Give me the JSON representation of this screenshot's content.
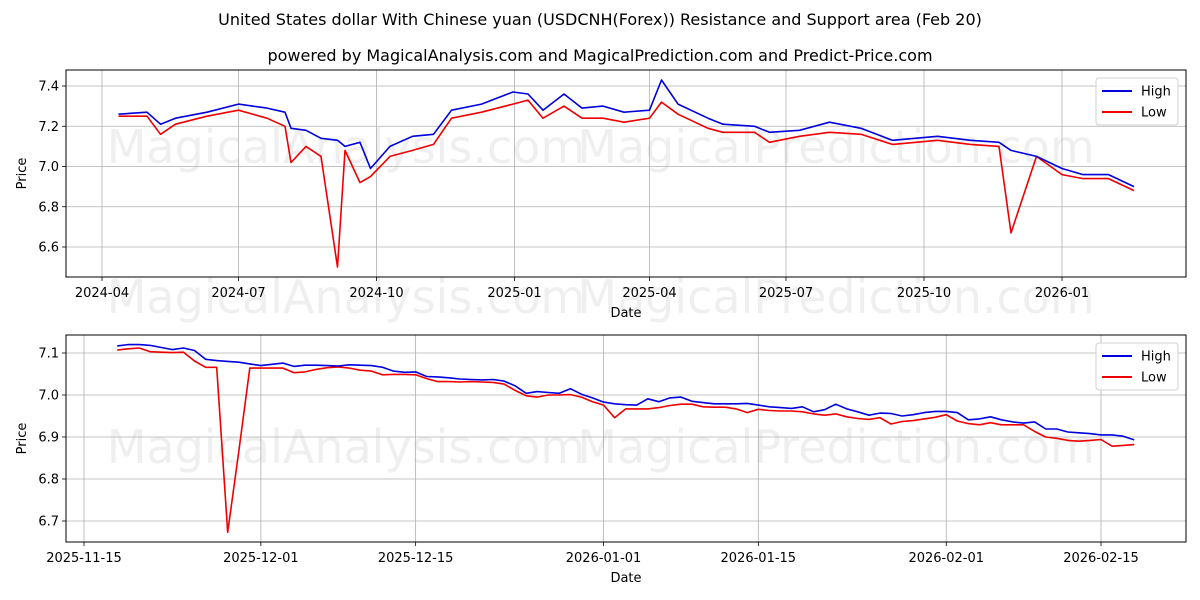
{
  "header": {
    "title": "United States dollar With Chinese yuan (USDCNH(Forex)) Resistance and Support area (Feb 20)",
    "subtitle": "powered by MagicalAnalysis.com and MagicalPrediction.com and Predict-Price.com"
  },
  "watermarks": [
    "MagicalAnalysis.com",
    "MagicalPrediction.com"
  ],
  "colors": {
    "high": "#0000dd",
    "low": "#ee0000",
    "grid": "#b0b0b0"
  },
  "chart_data": [
    {
      "type": "line",
      "title": "",
      "xlabel": "Date",
      "ylabel": "Price",
      "ylim": [
        6.45,
        7.48
      ],
      "grid": true,
      "legend_position": "upper right",
      "yticks": [
        "6.6",
        "6.8",
        "7.0",
        "7.2",
        "7.4"
      ],
      "xticks": [
        "2024-04",
        "2024-07",
        "2024-10",
        "2025-01",
        "2025-04",
        "2025-07",
        "2025-10",
        "2026-01"
      ],
      "x": [
        "2024-04-12",
        "2024-05-01",
        "2024-05-10",
        "2024-05-20",
        "2024-06-10",
        "2024-07-01",
        "2024-07-20",
        "2024-08-01",
        "2024-08-05",
        "2024-08-15",
        "2024-08-25",
        "2024-09-05",
        "2024-09-10",
        "2024-09-20",
        "2024-09-27",
        "2024-10-10",
        "2024-10-25",
        "2024-11-08",
        "2024-11-20",
        "2024-12-10",
        "2024-12-31",
        "2025-01-10",
        "2025-01-20",
        "2025-02-03",
        "2025-02-15",
        "2025-03-01",
        "2025-03-15",
        "2025-04-01",
        "2025-04-09",
        "2025-04-20",
        "2025-05-10",
        "2025-05-20",
        "2025-06-10",
        "2025-06-20",
        "2025-07-10",
        "2025-07-30",
        "2025-08-20",
        "2025-09-10",
        "2025-10-10",
        "2025-11-01",
        "2025-11-20",
        "2025-11-28",
        "2025-12-15",
        "2026-01-01",
        "2026-01-15",
        "2026-02-01",
        "2026-02-18"
      ],
      "series": [
        {
          "name": "High",
          "values": [
            7.26,
            7.27,
            7.21,
            7.24,
            7.27,
            7.31,
            7.29,
            7.27,
            7.19,
            7.18,
            7.14,
            7.13,
            7.1,
            7.12,
            6.99,
            7.1,
            7.15,
            7.16,
            7.28,
            7.31,
            7.37,
            7.36,
            7.28,
            7.36,
            7.29,
            7.3,
            7.27,
            7.28,
            7.43,
            7.31,
            7.24,
            7.21,
            7.2,
            7.17,
            7.18,
            7.22,
            7.19,
            7.13,
            7.15,
            7.13,
            7.12,
            7.08,
            7.05,
            6.99,
            6.96,
            6.96,
            6.9
          ]
        },
        {
          "name": "Low",
          "values": [
            7.25,
            7.25,
            7.16,
            7.21,
            7.25,
            7.28,
            7.24,
            7.2,
            7.02,
            7.1,
            7.05,
            6.5,
            7.08,
            6.92,
            6.95,
            7.05,
            7.08,
            7.11,
            7.24,
            7.27,
            7.31,
            7.33,
            7.24,
            7.3,
            7.24,
            7.24,
            7.22,
            7.24,
            7.32,
            7.26,
            7.19,
            7.17,
            7.17,
            7.12,
            7.15,
            7.17,
            7.16,
            7.11,
            7.13,
            7.11,
            7.1,
            6.67,
            7.05,
            6.96,
            6.94,
            6.94,
            6.88
          ]
        }
      ]
    },
    {
      "type": "line",
      "title": "",
      "xlabel": "Date",
      "ylabel": "Price",
      "ylim": [
        6.65,
        7.14
      ],
      "grid": true,
      "legend_position": "upper right",
      "yticks": [
        "6.7",
        "6.8",
        "6.9",
        "7.0",
        "7.1"
      ],
      "xticks": [
        "2025-11-15",
        "2025-12-01",
        "2025-12-15",
        "2026-01-01",
        "2026-01-15",
        "2026-02-01",
        "2026-02-15"
      ],
      "x": [
        "2025-11-18",
        "2025-11-19",
        "2025-11-20",
        "2025-11-21",
        "2025-11-22",
        "2025-11-23",
        "2025-11-24",
        "2025-11-25",
        "2025-11-26",
        "2025-11-27",
        "2025-11-28",
        "2025-11-29",
        "2025-11-30",
        "2025-12-01",
        "2025-12-02",
        "2025-12-03",
        "2025-12-04",
        "2025-12-05",
        "2025-12-06",
        "2025-12-07",
        "2025-12-08",
        "2025-12-09",
        "2025-12-10",
        "2025-12-11",
        "2025-12-12",
        "2025-12-13",
        "2025-12-14",
        "2025-12-15",
        "2025-12-16",
        "2025-12-17",
        "2025-12-18",
        "2025-12-19",
        "2025-12-20",
        "2025-12-21",
        "2025-12-22",
        "2025-12-23",
        "2025-12-24",
        "2025-12-25",
        "2025-12-26",
        "2025-12-27",
        "2025-12-28",
        "2025-12-29",
        "2025-12-30",
        "2025-12-31",
        "2026-01-01",
        "2026-01-02",
        "2026-01-03",
        "2026-01-04",
        "2026-01-05",
        "2026-01-06",
        "2026-01-07",
        "2026-01-08",
        "2026-01-09",
        "2026-01-10",
        "2026-01-11",
        "2026-01-12",
        "2026-01-13",
        "2026-01-14",
        "2026-01-15",
        "2026-01-16",
        "2026-01-17",
        "2026-01-18",
        "2026-01-19",
        "2026-01-20",
        "2026-01-21",
        "2026-01-22",
        "2026-01-23",
        "2026-01-24",
        "2026-01-25",
        "2026-01-26",
        "2026-01-27",
        "2026-01-28",
        "2026-01-29",
        "2026-01-30",
        "2026-01-31",
        "2026-02-01",
        "2026-02-02",
        "2026-02-03",
        "2026-02-04",
        "2026-02-05",
        "2026-02-06",
        "2026-02-07",
        "2026-02-08",
        "2026-02-09",
        "2026-02-10",
        "2026-02-11",
        "2026-02-12",
        "2026-02-13",
        "2026-02-14",
        "2026-02-15",
        "2026-02-16",
        "2026-02-17",
        "2026-02-18"
      ],
      "series": [
        {
          "name": "High",
          "values": [
            7.117,
            7.12,
            7.12,
            7.118,
            7.113,
            7.108,
            7.112,
            7.106,
            7.085,
            7.082,
            7.08,
            7.078,
            7.074,
            7.07,
            7.073,
            7.076,
            7.068,
            7.071,
            7.071,
            7.07,
            7.069,
            7.072,
            7.071,
            7.07,
            7.066,
            7.057,
            7.054,
            7.055,
            7.044,
            7.043,
            7.041,
            7.038,
            7.037,
            7.036,
            7.037,
            7.033,
            7.022,
            7.004,
            7.008,
            7.006,
            7.004,
            7.015,
            7.002,
            6.993,
            6.983,
            6.979,
            6.977,
            6.976,
            6.991,
            6.984,
            6.993,
            6.995,
            6.985,
            6.982,
            6.979,
            6.979,
            6.979,
            6.98,
            6.976,
            6.972,
            6.97,
            6.968,
            6.972,
            6.96,
            6.965,
            6.978,
            6.967,
            6.96,
            6.952,
            6.957,
            6.956,
            6.95,
            6.953,
            6.958,
            6.961,
            6.961,
            6.958,
            6.941,
            6.943,
            6.948,
            6.941,
            6.936,
            6.933,
            6.936,
            6.919,
            6.919,
            6.912,
            6.91,
            6.908,
            6.905,
            6.905,
            6.902,
            6.893
          ]
        },
        {
          "name": "Low",
          "values": [
            7.107,
            7.11,
            7.112,
            7.103,
            7.102,
            7.101,
            7.102,
            7.081,
            7.066,
            7.066,
            6.673,
            6.866,
            7.064,
            7.064,
            7.064,
            7.064,
            7.053,
            7.055,
            7.061,
            7.065,
            7.067,
            7.064,
            7.059,
            7.057,
            7.048,
            7.049,
            7.049,
            7.048,
            7.039,
            7.032,
            7.032,
            7.031,
            7.032,
            7.031,
            7.03,
            7.026,
            7.011,
            6.998,
            6.995,
            7.0,
            7.0,
            7.001,
            6.995,
            6.984,
            6.976,
            6.946,
            6.967,
            6.967,
            6.967,
            6.97,
            6.975,
            6.978,
            6.978,
            6.972,
            6.971,
            6.971,
            6.967,
            6.958,
            6.966,
            6.963,
            6.962,
            6.962,
            6.96,
            6.955,
            6.952,
            6.955,
            6.948,
            6.944,
            6.942,
            6.946,
            6.931,
            6.937,
            6.939,
            6.943,
            6.947,
            6.953,
            6.938,
            6.932,
            6.929,
            6.934,
            6.929,
            6.929,
            6.929,
            6.913,
            6.9,
            6.897,
            6.892,
            6.89,
            6.892,
            6.894,
            6.878,
            6.88,
            6.882
          ]
        }
      ]
    }
  ],
  "legend": {
    "high_label": "High",
    "low_label": "Low"
  }
}
